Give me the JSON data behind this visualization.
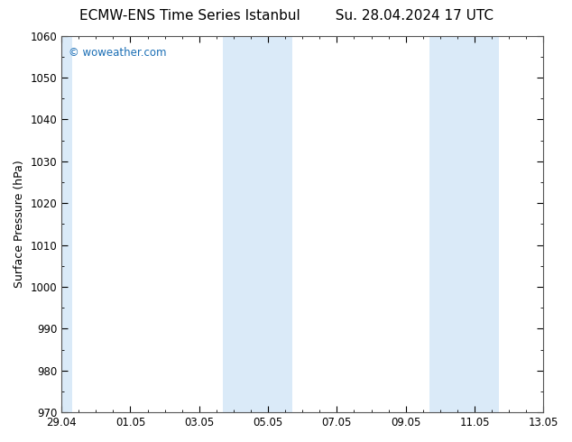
{
  "title": "ECMW-ENS Time Series Istanbul",
  "subtitle": "Su. 28.04.2024 17 UTC",
  "ylabel": "Surface Pressure (hPa)",
  "ylim": [
    970,
    1060
  ],
  "yticks": [
    970,
    980,
    990,
    1000,
    1010,
    1020,
    1030,
    1040,
    1050,
    1060
  ],
  "xlim": [
    0,
    14
  ],
  "xtick_labels": [
    "29.04",
    "01.05",
    "03.05",
    "05.05",
    "07.05",
    "09.05",
    "11.05",
    "13.05"
  ],
  "xtick_positions": [
    0,
    2,
    4,
    6,
    8,
    10,
    12,
    14
  ],
  "shaded_bands": [
    {
      "start": 0.0,
      "end": 0.3
    },
    {
      "start": 4.7,
      "end": 6.7
    },
    {
      "start": 10.7,
      "end": 12.7
    }
  ],
  "watermark_text": "© woweather.com",
  "watermark_color": "#1a6eb5",
  "bg_color": "#ffffff",
  "plot_bg_color": "#ffffff",
  "shaded_color": "#daeaf8",
  "grid_color": "#cccccc",
  "border_color": "#555555",
  "title_fontsize": 11,
  "ylabel_fontsize": 9,
  "tick_fontsize": 8.5,
  "watermark_fontsize": 8.5
}
